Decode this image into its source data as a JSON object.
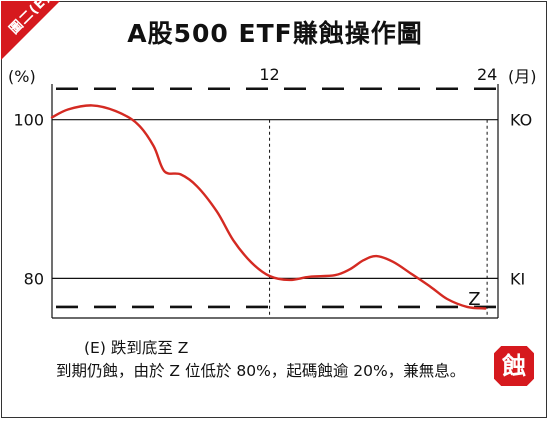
{
  "figure": {
    "tag": "圖二(E)",
    "title": "A股500 ETF賺蝕操作圖",
    "desc_title": "(E)  跌到底至 Z",
    "desc_body": "到期仍蝕，由於 Z 位低於 80%，起碼蝕逾 20%，兼無息。",
    "badge": "蝕"
  },
  "colors": {
    "accent": "#d6191e",
    "line": "#d42a22",
    "ink": "#111111"
  },
  "chart_data": {
    "type": "line",
    "title": "A股500 ETF賺蝕操作圖",
    "xlabel": "(月)",
    "ylabel": "(%)",
    "x_ticks": [
      12,
      24
    ],
    "y_ticks": [
      100,
      80
    ],
    "xlim": [
      0,
      24.6
    ],
    "ylim": [
      75,
      104.5
    ],
    "grid": false,
    "reference_lines": [
      {
        "label": "KO",
        "value": 100,
        "style": "solid"
      },
      {
        "label": "KI",
        "value": 80,
        "style": "solid"
      },
      {
        "label": "",
        "value": 103.9,
        "style": "dashed"
      },
      {
        "label": "",
        "value": 76.4,
        "style": "dashed"
      }
    ],
    "vertical_markers": [
      {
        "x": 12,
        "style": "dashed"
      },
      {
        "x": 24,
        "style": "dashed"
      }
    ],
    "series": [
      {
        "x": [
          0,
          0.9,
          2.2,
          3.5,
          4.7,
          5.6,
          6.2,
          7.1,
          8.0,
          9.1,
          10.0,
          11.0,
          12.0,
          13.1,
          14.2,
          15.6,
          16.4,
          17.2,
          17.9,
          18.8,
          19.8,
          20.9,
          21.8,
          22.9,
          23.9
        ],
        "y": [
          100.3,
          101.3,
          101.8,
          101.1,
          99.5,
          96.7,
          93.5,
          93.1,
          91.6,
          88.4,
          84.8,
          82.0,
          80.3,
          79.8,
          80.2,
          80.4,
          81.1,
          82.3,
          82.8,
          82.1,
          80.6,
          78.9,
          77.4,
          76.4,
          76.2
        ]
      }
    ],
    "annotations": [
      {
        "text": "Z",
        "x": 23.3,
        "y": 76.3
      }
    ]
  }
}
